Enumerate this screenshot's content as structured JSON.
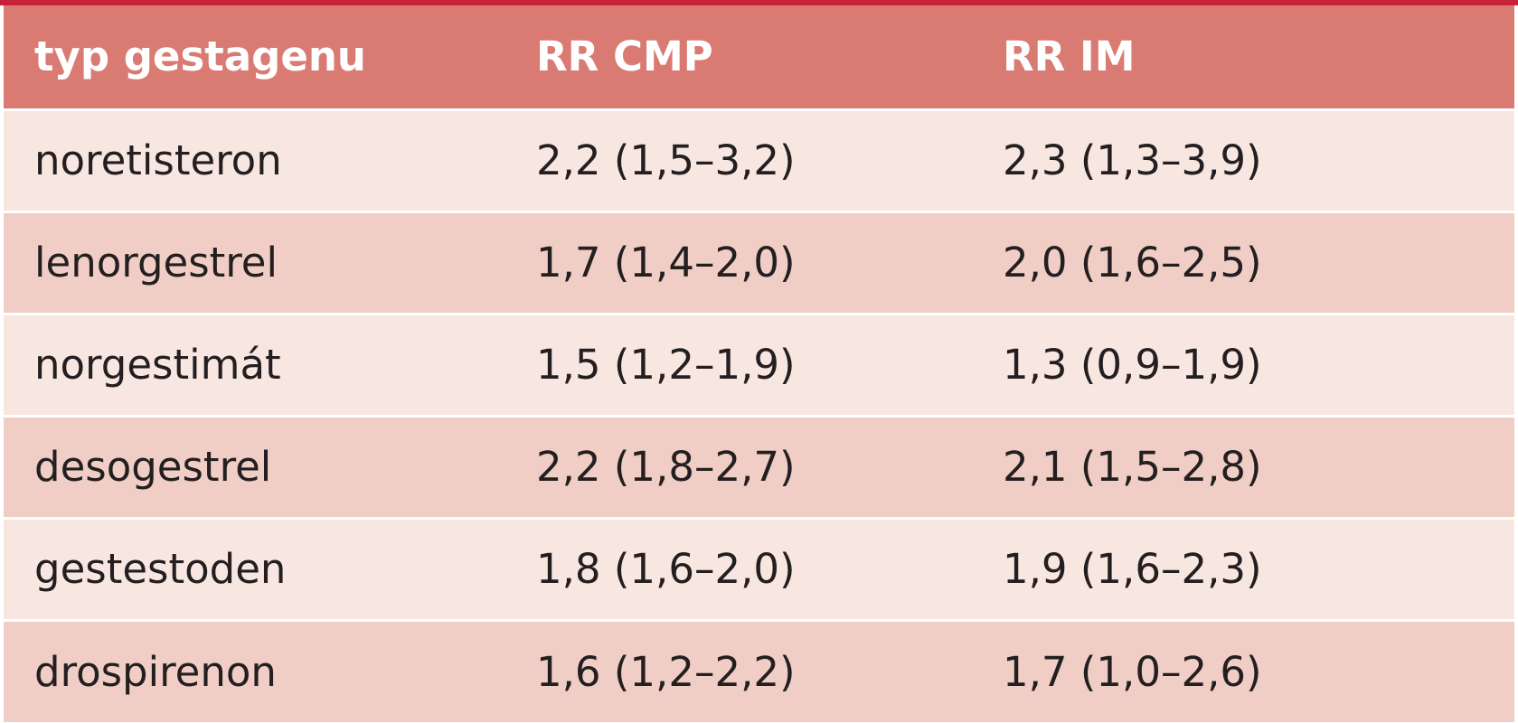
{
  "table": {
    "headers": [
      "typ gestagenu",
      "RR CMP",
      "RR IM"
    ],
    "rows": [
      [
        "noretisteron",
        "2,2 (1,5–3,2)",
        "2,3 (1,3–3,9)"
      ],
      [
        "lenorgestrel",
        "1,7 (1,4–2,0)",
        "2,0 (1,6–2,5)"
      ],
      [
        "norgestimát",
        "1,5 (1,2–1,9)",
        "1,3 (0,9–1,9)"
      ],
      [
        "desogestrel",
        "2,2 (1,8–2,7)",
        "2,1 (1,5–2,8)"
      ],
      [
        "gestestoden",
        "1,8 (1,6–2,0)",
        "1,9 (1,6–2,3)"
      ],
      [
        "drospirenon",
        "1,6 (1,2–2,2)",
        "1,7 (1,0–2,6)"
      ]
    ]
  },
  "colors": {
    "accent_rule": "#c8223a",
    "header_bg": "#d97b73",
    "row_light": "#f8e6e1",
    "row_dark": "#f0cdc5"
  }
}
